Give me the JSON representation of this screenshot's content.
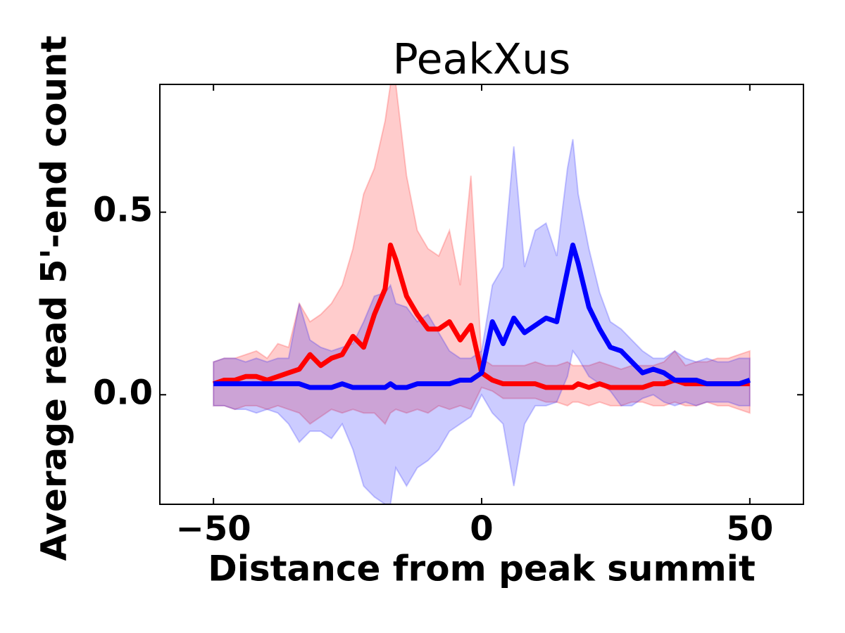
{
  "chart_data": {
    "type": "line",
    "title": "PeakXus",
    "xlabel": "Distance from peak summit",
    "ylabel": "Average read 5'-end count",
    "x": [
      -50,
      -48,
      -46,
      -44,
      -42,
      -40,
      -38,
      -36,
      -34,
      -32,
      -30,
      -28,
      -26,
      -24,
      -22,
      -20,
      -18,
      -17,
      -16,
      -14,
      -12,
      -10,
      -8,
      -6,
      -4,
      -2,
      0,
      2,
      4,
      6,
      8,
      10,
      12,
      14,
      16,
      17,
      18,
      20,
      22,
      24,
      26,
      28,
      30,
      32,
      34,
      36,
      38,
      40,
      42,
      44,
      46,
      48,
      50
    ],
    "xlim": [
      -60,
      60
    ],
    "xticks": [
      {
        "value": -50,
        "label": "−50"
      },
      0,
      50
    ],
    "ylim": [
      -0.3,
      0.85
    ],
    "yticks": [
      {
        "value": 0,
        "label": "0.0"
      },
      0.5
    ],
    "band_alpha": 0.2,
    "series": [
      {
        "color": "#ff0000",
        "values": [
          0.03,
          0.04,
          0.04,
          0.05,
          0.05,
          0.04,
          0.05,
          0.06,
          0.07,
          0.11,
          0.08,
          0.1,
          0.11,
          0.16,
          0.13,
          0.22,
          0.29,
          0.41,
          0.37,
          0.27,
          0.22,
          0.18,
          0.18,
          0.2,
          0.15,
          0.19,
          0.06,
          0.04,
          0.03,
          0.03,
          0.03,
          0.03,
          0.02,
          0.02,
          0.02,
          0.02,
          0.03,
          0.02,
          0.03,
          0.02,
          0.02,
          0.02,
          0.02,
          0.03,
          0.03,
          0.04,
          0.03,
          0.03,
          0.03,
          0.03,
          0.03,
          0.03,
          0.03
        ],
        "upper": [
          0.09,
          0.1,
          0.1,
          0.11,
          0.12,
          0.1,
          0.14,
          0.13,
          0.25,
          0.2,
          0.22,
          0.25,
          0.3,
          0.4,
          0.55,
          0.62,
          0.75,
          0.85,
          0.85,
          0.6,
          0.45,
          0.4,
          0.38,
          0.45,
          0.3,
          0.6,
          0.1,
          0.08,
          0.08,
          0.08,
          0.08,
          0.09,
          0.08,
          0.08,
          0.09,
          0.08,
          0.08,
          0.08,
          0.09,
          0.08,
          0.07,
          0.08,
          0.08,
          0.08,
          0.09,
          0.12,
          0.08,
          0.09,
          0.09,
          0.1,
          0.1,
          0.11,
          0.12
        ],
        "lower": [
          -0.03,
          -0.03,
          -0.04,
          -0.03,
          -0.03,
          -0.04,
          -0.03,
          -0.04,
          -0.05,
          -0.08,
          -0.06,
          -0.04,
          -0.05,
          -0.04,
          -0.05,
          -0.05,
          -0.08,
          -0.05,
          -0.04,
          -0.05,
          -0.04,
          -0.05,
          -0.03,
          -0.04,
          -0.03,
          -0.04,
          0.02,
          0.01,
          -0.01,
          -0.01,
          -0.01,
          -0.01,
          -0.02,
          -0.02,
          -0.03,
          -0.02,
          -0.02,
          -0.03,
          -0.02,
          -0.03,
          -0.03,
          -0.02,
          -0.02,
          -0.03,
          -0.03,
          -0.02,
          -0.03,
          -0.03,
          -0.02,
          -0.03,
          -0.03,
          -0.04,
          -0.05
        ]
      },
      {
        "color": "#0000ff",
        "values": [
          0.03,
          0.03,
          0.03,
          0.03,
          0.03,
          0.03,
          0.03,
          0.03,
          0.03,
          0.02,
          0.02,
          0.02,
          0.03,
          0.02,
          0.02,
          0.02,
          0.02,
          0.03,
          0.02,
          0.02,
          0.03,
          0.03,
          0.03,
          0.03,
          0.04,
          0.04,
          0.06,
          0.2,
          0.14,
          0.21,
          0.17,
          0.19,
          0.21,
          0.2,
          0.34,
          0.41,
          0.36,
          0.24,
          0.18,
          0.13,
          0.12,
          0.09,
          0.06,
          0.07,
          0.06,
          0.04,
          0.04,
          0.04,
          0.03,
          0.03,
          0.03,
          0.03,
          0.04
        ],
        "upper": [
          0.09,
          0.1,
          0.1,
          0.09,
          0.1,
          0.09,
          0.1,
          0.1,
          0.25,
          0.15,
          0.13,
          0.12,
          0.13,
          0.14,
          0.2,
          0.27,
          0.28,
          0.3,
          0.25,
          0.24,
          0.2,
          0.22,
          0.17,
          0.12,
          0.1,
          0.1,
          0.12,
          0.3,
          0.35,
          0.68,
          0.35,
          0.45,
          0.47,
          0.38,
          0.62,
          0.7,
          0.55,
          0.4,
          0.28,
          0.2,
          0.18,
          0.15,
          0.12,
          0.1,
          0.1,
          0.12,
          0.1,
          0.09,
          0.1,
          0.09,
          0.09,
          0.1,
          0.1
        ],
        "lower": [
          -0.03,
          -0.03,
          -0.04,
          -0.04,
          -0.05,
          -0.04,
          -0.05,
          -0.08,
          -0.13,
          -0.1,
          -0.1,
          -0.12,
          -0.08,
          -0.15,
          -0.25,
          -0.28,
          -0.3,
          -0.3,
          -0.2,
          -0.25,
          -0.2,
          -0.18,
          -0.15,
          -0.1,
          -0.08,
          -0.06,
          0.0,
          -0.05,
          -0.08,
          -0.25,
          -0.08,
          -0.03,
          -0.03,
          -0.02,
          0.05,
          0.12,
          0.1,
          0.05,
          0.03,
          0.01,
          -0.03,
          -0.03,
          -0.01,
          0.0,
          -0.02,
          -0.03,
          -0.02,
          -0.03,
          -0.02,
          -0.02,
          -0.02,
          -0.03,
          -0.03
        ]
      }
    ]
  }
}
